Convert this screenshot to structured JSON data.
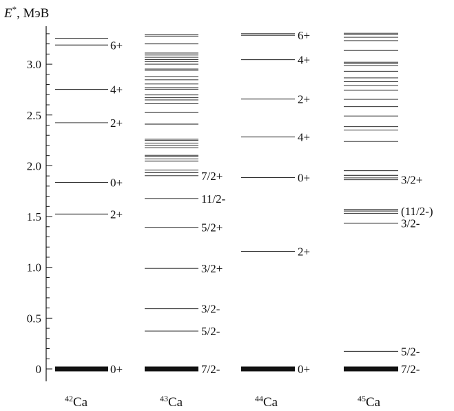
{
  "chart_data": {
    "type": "level-scheme",
    "ylabel_main": "E",
    "ylabel_sup": "*",
    "ylabel_unit": ", МэВ",
    "ylim": [
      -0.05,
      3.35
    ],
    "yticks": [
      "0",
      "0.5",
      "1.0",
      "1.5",
      "2.0",
      "2.5",
      "3.0"
    ],
    "ytick_values": [
      0,
      0.5,
      1.0,
      1.5,
      2.0,
      2.5,
      3.0
    ],
    "isotopes": [
      {
        "id": "ca42",
        "mass": "42",
        "element": "Ca",
        "levels": [
          0,
          1.525,
          1.837,
          2.424,
          2.752,
          3.189,
          3.254
        ],
        "ground_thick": true,
        "labels": [
          {
            "text": "0+",
            "energy": 0
          },
          {
            "text": "2+",
            "energy": 1.525
          },
          {
            "text": "0+",
            "energy": 1.837
          },
          {
            "text": "2+",
            "energy": 2.424
          },
          {
            "text": "4+",
            "energy": 2.752
          },
          {
            "text": "6+",
            "energy": 3.189
          }
        ]
      },
      {
        "id": "ca43",
        "mass": "43",
        "element": "Ca",
        "levels": [
          0,
          0.373,
          0.593,
          0.99,
          1.394,
          1.678,
          1.902,
          1.931,
          1.957,
          2.046,
          2.067,
          2.094,
          2.103,
          2.178,
          2.201,
          2.224,
          2.249,
          2.261,
          2.41,
          2.524,
          2.61,
          2.648,
          2.67,
          2.697,
          2.754,
          2.77,
          2.805,
          2.846,
          2.879,
          2.94,
          2.953,
          3.0,
          3.026,
          3.045,
          3.068,
          3.09,
          3.11,
          3.2,
          3.277,
          3.289
        ],
        "ground_thick": true,
        "labels": [
          {
            "text": "7/2-",
            "energy": 0
          },
          {
            "text": "5/2-",
            "energy": 0.373
          },
          {
            "text": "3/2-",
            "energy": 0.593
          },
          {
            "text": "3/2+",
            "energy": 0.99
          },
          {
            "text": "5/2+",
            "energy": 1.394
          },
          {
            "text": "11/2-",
            "energy": 1.678
          },
          {
            "text": "7/2+",
            "energy": 1.902
          }
        ]
      },
      {
        "id": "ca44",
        "mass": "44",
        "element": "Ca",
        "levels": [
          0,
          1.157,
          1.884,
          2.283,
          2.657,
          3.044,
          3.285,
          3.301
        ],
        "ground_thick": true,
        "labels": [
          {
            "text": "0+",
            "energy": 0
          },
          {
            "text": "2+",
            "energy": 1.157
          },
          {
            "text": "0+",
            "energy": 1.884
          },
          {
            "text": "4+",
            "energy": 2.283
          },
          {
            "text": "2+",
            "energy": 2.657
          },
          {
            "text": "4+",
            "energy": 3.044
          },
          {
            "text": "6+",
            "energy": 3.285
          }
        ]
      },
      {
        "id": "ca45",
        "mass": "45",
        "element": "Ca",
        "levels": [
          0,
          0.174,
          1.435,
          1.532,
          1.554,
          1.569,
          1.862,
          1.881,
          1.906,
          1.951,
          2.239,
          2.351,
          2.385,
          2.49,
          2.582,
          2.654,
          2.743,
          2.79,
          2.828,
          2.865,
          2.931,
          2.987,
          3.006,
          3.02,
          3.135,
          3.232,
          3.265,
          3.289,
          3.305
        ],
        "ground_thick": true,
        "labels": [
          {
            "text": "7/2-",
            "energy": 0
          },
          {
            "text": "5/2-",
            "energy": 0.174
          },
          {
            "text": "3/2-",
            "energy": 1.435
          },
          {
            "text": "(11/2-)",
            "energy": 1.554
          },
          {
            "text": "3/2+",
            "energy": 1.862
          }
        ]
      }
    ]
  }
}
